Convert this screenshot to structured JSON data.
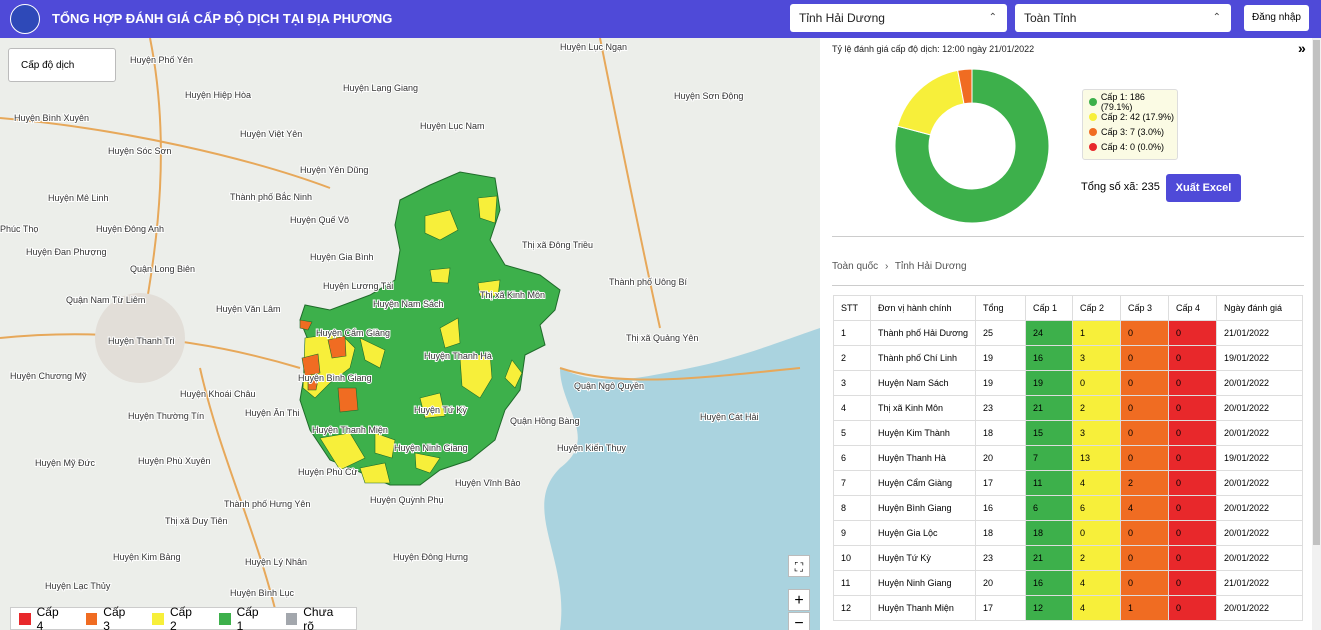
{
  "header": {
    "title": "TỔNG HỢP ĐÁNH GIÁ CẤP ĐỘ DỊCH TẠI ĐỊA PHƯƠNG",
    "province_select": "Tỉnh Hải Dương",
    "district_select": "Toàn Tỉnh",
    "login": "Đăng nhập"
  },
  "map": {
    "layer_select": "Cấp độ dịch",
    "labels": [
      "Huyện Phố Yên",
      "Huyện Lục Ngạn",
      "Huyện Hiệp Hòa",
      "Huyện Lạng Giang",
      "Huyện Sơn Động",
      "Huyện Bình Xuyên",
      "Huyện Việt Yên",
      "Huyện Lục Nam",
      "Huyện Sóc Sơn",
      "Huyện Yên Dũng",
      "Huyện Mê Linh",
      "Thành phố Bắc Ninh",
      "Huyện Đông Anh",
      "Huyện Quế Võ",
      "Phúc Thọ",
      "Huyện Đan Phượng",
      "Huyện Gia Bình",
      "Thị xã Đông Triều",
      "Quận Long Biên",
      "Huyện Lương Tài",
      "Thành phố Uông Bí",
      "Quận Nam Từ Liêm",
      "Huyện Nam Sách",
      "Thị xã Kinh Môn",
      "Huyện Văn Lâm",
      "Huyện Cẩm Giàng",
      "Thị xã Quảng Yên",
      "Huyện Thanh Trì",
      "Huyện Thanh Hà",
      "Huyện Chương Mỹ",
      "Huyện Bình Giang",
      "Quận Ngô Quyền",
      "Huyện Khoái Châu",
      "Huyện Tứ Kỳ",
      "Huyện Thường Tín",
      "Huyện Ân Thi",
      "Quận Hồng Bàng",
      "Huyện Cát Hải",
      "Huyện Thanh Miện",
      "Huyện Ninh Giang",
      "Huyện Kiến Thụy",
      "Huyện Mỹ Đức",
      "Huyện Phù Xuyên",
      "Huyện Phù Cừ",
      "Huyện Quỳnh Phụ",
      "Huyện Vĩnh Bảo",
      "Thành phố Hưng Yên",
      "Thị xã Duy Tiên",
      "Huyện Kim Bảng",
      "Huyện Lý Nhân",
      "Huyện Đông Hưng",
      "Huyện Lạc Thủy",
      "Huyện Bình Lục"
    ],
    "legend": [
      "Cấp 4",
      "Cấp 3",
      "Cấp 2",
      "Cấp 1",
      "Chưa rõ"
    ],
    "legend_colors": [
      "#e8282b",
      "#f06c22",
      "#f7ef3a",
      "#3db04b",
      "#a3a7ad"
    ],
    "zoom_in": "+",
    "zoom_out": "−"
  },
  "donut": {
    "title": "Tỷ lệ đánh giá cấp độ dịch: 12:00 ngày 21/01/2022",
    "values": [
      186,
      42,
      7,
      0
    ],
    "value_labels": [
      "Cấp 1: 186 (79.1%)",
      "Cấp 2: 42 (17.9%)",
      "Cấp 3: 7 (3.0%)",
      "Cấp 4: 0 (0.0%)"
    ],
    "colors": [
      "#3db04b",
      "#f7ef3a",
      "#f06c22",
      "#e8282b"
    ]
  },
  "total": "Tổng số xã: 235",
  "export": "Xuất Excel",
  "breadcrumb": [
    "Toàn quốc",
    "Tỉnh Hải Dương"
  ],
  "table": {
    "columns": [
      "STT",
      "Đơn vị hành chính",
      "Tổng",
      "Cấp 1",
      "Cấp 2",
      "Cấp 3",
      "Cấp 4",
      "Ngày đánh giá"
    ],
    "rows": [
      [
        1,
        "Thành phố Hải Dương",
        25,
        24,
        1,
        0,
        0,
        "21/01/2022"
      ],
      [
        2,
        "Thành phố Chí Linh",
        19,
        16,
        3,
        0,
        0,
        "19/01/2022"
      ],
      [
        3,
        "Huyện Nam Sách",
        19,
        19,
        0,
        0,
        0,
        "20/01/2022"
      ],
      [
        4,
        "Thị xã Kinh Môn",
        23,
        21,
        2,
        0,
        0,
        "20/01/2022"
      ],
      [
        5,
        "Huyện Kim Thành",
        18,
        15,
        3,
        0,
        0,
        "20/01/2022"
      ],
      [
        6,
        "Huyện Thanh Hà",
        20,
        7,
        13,
        0,
        0,
        "19/01/2022"
      ],
      [
        7,
        "Huyện Cẩm Giàng",
        17,
        11,
        4,
        2,
        0,
        "20/01/2022"
      ],
      [
        8,
        "Huyện Bình Giang",
        16,
        6,
        6,
        4,
        0,
        "20/01/2022"
      ],
      [
        9,
        "Huyện Gia Lộc",
        18,
        18,
        0,
        0,
        0,
        "20/01/2022"
      ],
      [
        10,
        "Huyện Tứ Kỳ",
        23,
        21,
        2,
        0,
        0,
        "20/01/2022"
      ],
      [
        11,
        "Huyện Ninh Giang",
        20,
        16,
        4,
        0,
        0,
        "21/01/2022"
      ],
      [
        12,
        "Huyện Thanh Miện",
        17,
        12,
        4,
        1,
        0,
        "20/01/2022"
      ]
    ]
  }
}
